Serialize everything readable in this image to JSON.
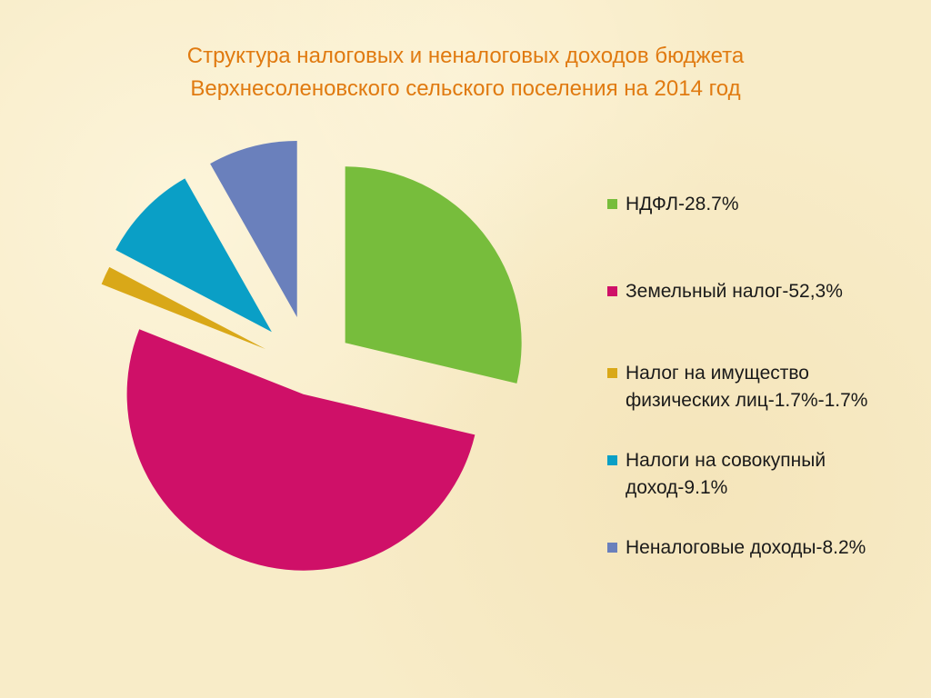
{
  "chart_data": {
    "type": "pie",
    "title": "Структура налоговых и неналоговых доходов бюджета",
    "subtitle": "Верхнесоленовского сельского поселения на 2014 год",
    "legend_position": "right",
    "slices": [
      {
        "label": "НДФЛ-28.7%",
        "value": 28.7,
        "color": "#77bd3c"
      },
      {
        "label": "Земельный налог-52,3%",
        "value": 52.3,
        "color": "#cf1068"
      },
      {
        "label": "Налог на имущество физических лиц-1.7%-1.7%",
        "value": 1.7,
        "color": "#d9a818"
      },
      {
        "label": "Налоги на совокупный доход-9.1%",
        "value": 9.1,
        "color": "#0a9fc6"
      },
      {
        "label": "Неналоговые доходы-8.2%",
        "value": 8.2,
        "color": "#6a80bc"
      }
    ]
  },
  "colors": {
    "title": "#e07a10",
    "background": "#f8ecc8"
  }
}
